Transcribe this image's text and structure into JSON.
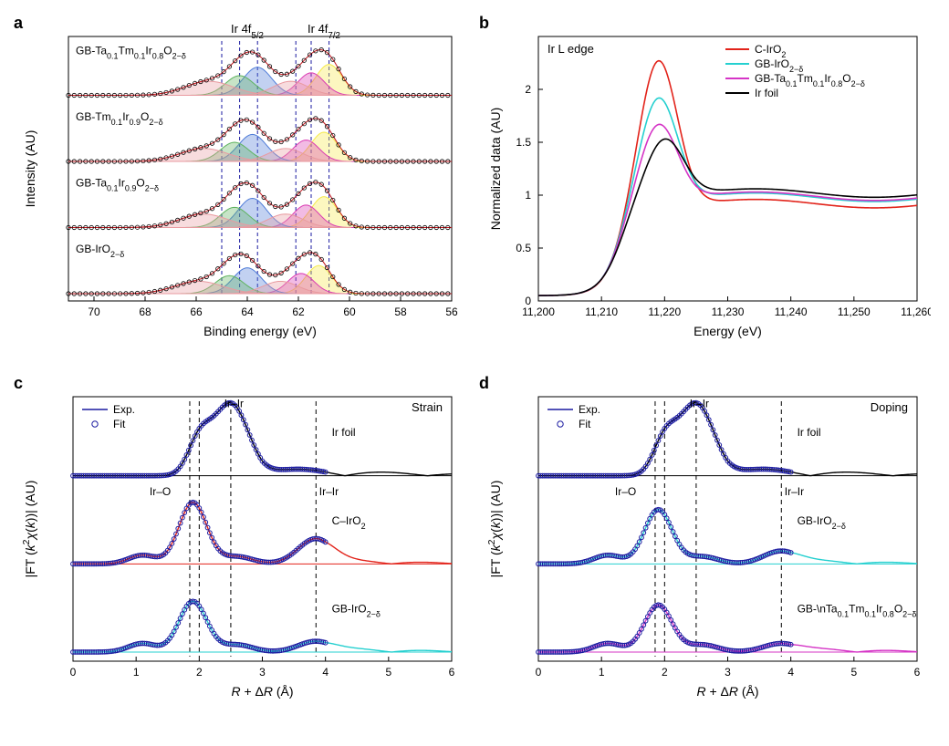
{
  "panel_a": {
    "label": "a",
    "type": "xps-stacked",
    "x_axis": {
      "title": "Binding energy (eV)",
      "min": 56,
      "max": 71,
      "ticks": [
        56,
        58,
        60,
        62,
        64,
        66,
        68,
        70
      ],
      "reversed": true
    },
    "y_axis": {
      "title": "Intensity (AU)"
    },
    "peak_labels": [
      {
        "text": "Ir 4f_{5/2}",
        "x": 64.0
      },
      {
        "text": "Ir 4f_{7/2}",
        "x": 61.0
      }
    ],
    "dash_lines_x": [
      60.8,
      61.5,
      62.1,
      63.6,
      64.3,
      65.0
    ],
    "component_colors": {
      "c1": "#f5e94a",
      "c2": "#da3bb3",
      "c3": "#4f7cd8",
      "c4": "#5fb35f",
      "c5": "#e99aa0",
      "c6": "#e99aa0"
    },
    "rows": [
      {
        "name": "GB-Ta_{0.1}Tm_{0.1}Ir_{0.8}O_{2−δ}",
        "baseline_y": 0,
        "components": [
          {
            "color_key": "c1",
            "center": 60.8,
            "width": 1.2,
            "height": 0.55
          },
          {
            "color_key": "c2",
            "center": 61.5,
            "width": 1.2,
            "height": 0.4
          },
          {
            "color_key": "c3",
            "center": 63.6,
            "width": 1.3,
            "height": 0.5
          },
          {
            "color_key": "c4",
            "center": 64.3,
            "width": 1.3,
            "height": 0.35
          },
          {
            "color_key": "c5",
            "center": 62.3,
            "width": 1.6,
            "height": 0.25
          },
          {
            "color_key": "c6",
            "center": 65.5,
            "width": 2.2,
            "height": 0.25
          }
        ]
      },
      {
        "name": "GB-Tm_{0.1}Ir_{0.9}O_{2−δ}",
        "components": [
          {
            "color_key": "c1",
            "center": 61.0,
            "width": 1.2,
            "height": 0.52
          },
          {
            "color_key": "c2",
            "center": 61.7,
            "width": 1.2,
            "height": 0.38
          },
          {
            "color_key": "c3",
            "center": 63.8,
            "width": 1.3,
            "height": 0.48
          },
          {
            "color_key": "c4",
            "center": 64.5,
            "width": 1.3,
            "height": 0.34
          },
          {
            "color_key": "c5",
            "center": 62.5,
            "width": 1.6,
            "height": 0.23
          },
          {
            "color_key": "c6",
            "center": 65.7,
            "width": 2.2,
            "height": 0.23
          }
        ]
      },
      {
        "name": "GB-Ta_{0.1}Ir_{0.9}O_{2−δ}",
        "components": [
          {
            "color_key": "c1",
            "center": 61.0,
            "width": 1.2,
            "height": 0.55
          },
          {
            "color_key": "c2",
            "center": 61.7,
            "width": 1.2,
            "height": 0.4
          },
          {
            "color_key": "c3",
            "center": 63.8,
            "width": 1.3,
            "height": 0.52
          },
          {
            "color_key": "c4",
            "center": 64.5,
            "width": 1.3,
            "height": 0.36
          },
          {
            "color_key": "c5",
            "center": 62.5,
            "width": 1.6,
            "height": 0.24
          },
          {
            "color_key": "c6",
            "center": 65.7,
            "width": 2.2,
            "height": 0.24
          }
        ]
      },
      {
        "name": "GB-IrO_{2−δ}",
        "components": [
          {
            "color_key": "c1",
            "center": 61.2,
            "width": 1.2,
            "height": 0.5
          },
          {
            "color_key": "c2",
            "center": 61.9,
            "width": 1.2,
            "height": 0.36
          },
          {
            "color_key": "c3",
            "center": 64.0,
            "width": 1.3,
            "height": 0.46
          },
          {
            "color_key": "c4",
            "center": 64.7,
            "width": 1.3,
            "height": 0.32
          },
          {
            "color_key": "c5",
            "center": 62.7,
            "width": 1.6,
            "height": 0.22
          },
          {
            "color_key": "c6",
            "center": 65.9,
            "width": 2.2,
            "height": 0.22
          }
        ]
      }
    ]
  },
  "panel_b": {
    "label": "b",
    "type": "xanes",
    "title_inside": "Ir L edge",
    "x_axis": {
      "title": "Energy (eV)",
      "min": 11200,
      "max": 11260,
      "ticks": [
        11200,
        11210,
        11220,
        11230,
        11240,
        11250,
        11260
      ]
    },
    "y_axis": {
      "title": "Normalized data (AU)",
      "min": 0,
      "max": 2.5,
      "ticks": [
        0,
        0.5,
        1.0,
        1.5,
        2.0
      ]
    },
    "legend": [
      {
        "label": "C-IrO_{2}",
        "color": "#e2231a"
      },
      {
        "label": "GB-IrO_{2−δ}",
        "color": "#25d0d0"
      },
      {
        "label": "GB-Ta_{0.1}Tm_{0.1}Ir_{0.8}O_{2−δ}",
        "color": "#d534c6"
      },
      {
        "label": "Ir foil",
        "color": "#000000"
      }
    ],
    "series": [
      {
        "color": "#e2231a",
        "peak_y": 2.3,
        "peak_x": 11219,
        "post": 0.92
      },
      {
        "color": "#25d0d0",
        "peak_y": 1.95,
        "peak_x": 11219,
        "post": 0.98
      },
      {
        "color": "#d534c6",
        "peak_y": 1.7,
        "peak_x": 11219,
        "post": 0.99
      },
      {
        "color": "#000000",
        "peak_y": 1.55,
        "peak_x": 11220,
        "post": 1.02
      }
    ]
  },
  "panel_c": {
    "label": "c",
    "type": "exafs-ft",
    "corner_label": "Strain",
    "x_axis": {
      "title": "R + ΔR (Å)",
      "min": 0,
      "max": 6,
      "ticks": [
        0,
        1,
        2,
        3,
        4,
        5,
        6
      ]
    },
    "y_axis": {
      "title": "|FT (k^{2}χ(k))| (AU)"
    },
    "legend": {
      "exp": "Exp.",
      "fit": "Fit",
      "exp_color": "#1a1aa0",
      "fit_color": "#1a1aa0"
    },
    "dash_lines_x": [
      1.85,
      2.0,
      2.5,
      3.85
    ],
    "peak_labels": [
      {
        "text": "Ir–Ir",
        "x": 2.55,
        "row": 0
      },
      {
        "text": "Ir–O",
        "x": 1.55,
        "row": 1,
        "side": "left"
      },
      {
        "text": "Ir–Ir",
        "x": 3.9,
        "row": 1,
        "side": "right"
      }
    ],
    "rows": [
      {
        "name": "Ir foil",
        "line_color": "#000000",
        "main_peak_x": 2.5,
        "main_peak_h": 1.0,
        "shoulder_x": 2.0,
        "shoulder_h": 0.45,
        "pattern": "metal"
      },
      {
        "name": "C–IrO_{2}",
        "line_color": "#e2231a",
        "main_peak_x": 1.9,
        "main_peak_h": 0.85,
        "second_peak_x": 3.85,
        "second_peak_h": 0.35,
        "pattern": "oxide"
      },
      {
        "name": "GB-IrO_{2−δ}",
        "line_color": "#25d0d0",
        "main_peak_x": 1.9,
        "main_peak_h": 0.7,
        "second_peak_x": 3.85,
        "second_peak_h": 0.15,
        "pattern": "oxide"
      }
    ]
  },
  "panel_d": {
    "label": "d",
    "type": "exafs-ft",
    "corner_label": "Doping",
    "x_axis": {
      "title": "R + ΔR (Å)",
      "min": 0,
      "max": 6,
      "ticks": [
        0,
        1,
        2,
        3,
        4,
        5,
        6
      ]
    },
    "y_axis": {
      "title": "|FT (k^{2}χ(k))| (AU)"
    },
    "legend": {
      "exp": "Exp.",
      "fit": "Fit",
      "exp_color": "#1a1aa0",
      "fit_color": "#1a1aa0"
    },
    "dash_lines_x": [
      1.85,
      2.0,
      2.5,
      3.85
    ],
    "peak_labels": [
      {
        "text": "Ir–Ir",
        "x": 2.55,
        "row": 0
      },
      {
        "text": "Ir–O",
        "x": 1.55,
        "row": 1,
        "side": "left"
      },
      {
        "text": "Ir–Ir",
        "x": 3.9,
        "row": 1,
        "side": "right"
      }
    ],
    "rows": [
      {
        "name": "Ir foil",
        "line_color": "#000000",
        "main_peak_x": 2.5,
        "main_peak_h": 1.0,
        "shoulder_x": 2.0,
        "shoulder_h": 0.45,
        "pattern": "metal"
      },
      {
        "name": "GB-IrO_{2−δ}",
        "line_color": "#25d0d0",
        "main_peak_x": 1.9,
        "main_peak_h": 0.75,
        "second_peak_x": 3.85,
        "second_peak_h": 0.18,
        "pattern": "oxide"
      },
      {
        "name": "GB-\\nTa_{0.1}Tm_{0.1}Ir_{0.8}O_{2−δ}",
        "line_color": "#d534c6",
        "main_peak_x": 1.9,
        "main_peak_h": 0.65,
        "second_peak_x": 3.85,
        "second_peak_h": 0.12,
        "pattern": "oxide"
      }
    ]
  },
  "colors": {
    "axis": "#000000",
    "background": "#ffffff"
  },
  "fontsize": {
    "tick": 12,
    "axis_title": 14,
    "panel_label": 18,
    "annotation": 12
  }
}
